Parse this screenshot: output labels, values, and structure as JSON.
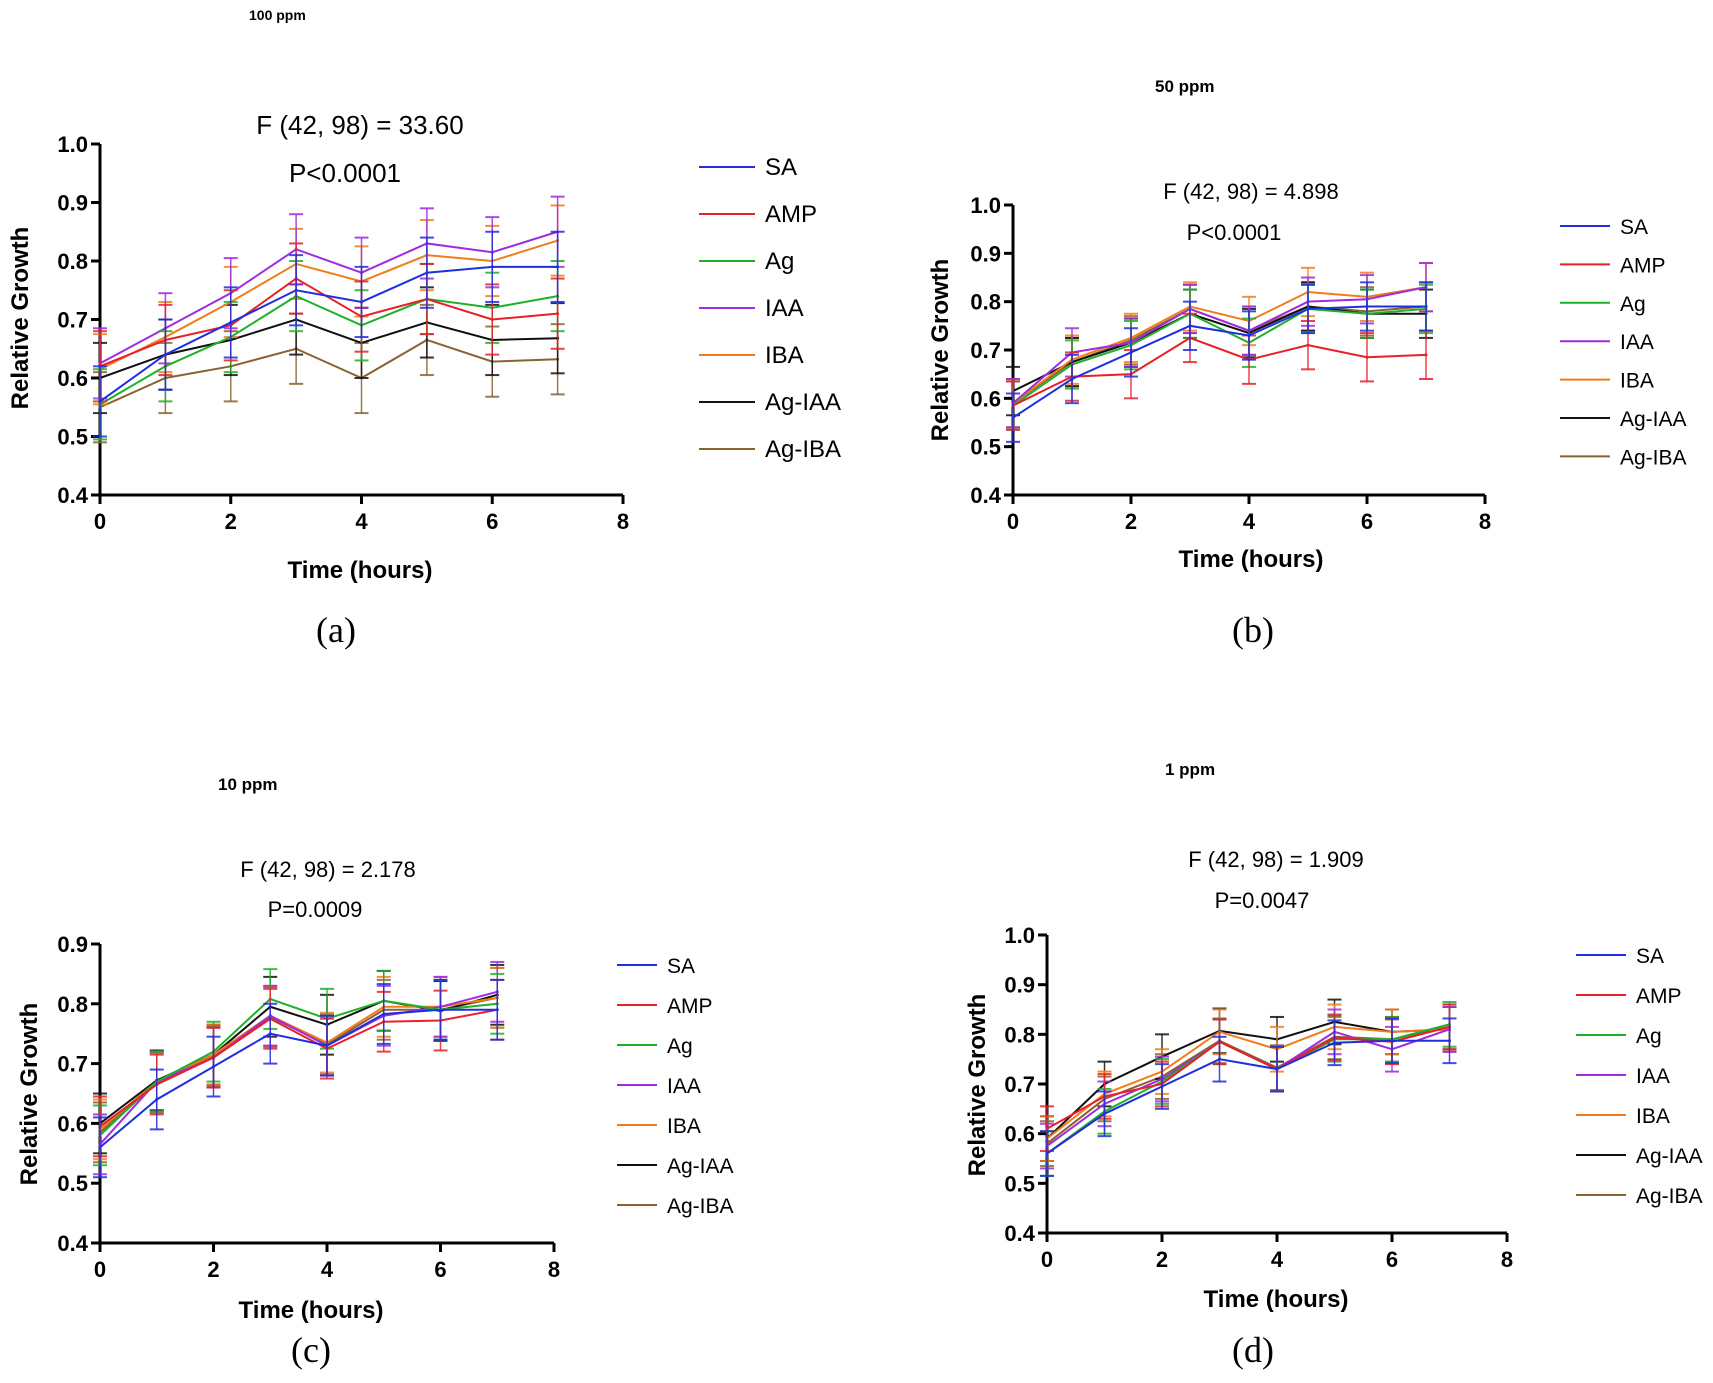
{
  "colors": {
    "SA": "#1f2fe0",
    "AMP": "#e8202a",
    "Ag": "#1fb02a",
    "IAA": "#a02be0",
    "IBA": "#f07d1a",
    "Ag-IAA": "#111111",
    "Ag-IBA": "#8a6230"
  },
  "chart_data": [
    {
      "type": "line",
      "panel": "(a)",
      "title": "100 ppm",
      "stat_f": "F (42, 98) = 33.60",
      "stat_p": "P<0.0001",
      "xlabel": "Time (hours)",
      "ylabel": "Relative Growth",
      "xlim": [
        0,
        8
      ],
      "ylim": [
        0.4,
        1.0
      ],
      "xticks": [
        "0",
        "2",
        "4",
        "6",
        "8"
      ],
      "yticks": [
        "0.4",
        "0.5",
        "0.6",
        "0.7",
        "0.8",
        "0.9",
        "1.0"
      ],
      "x": [
        0,
        1,
        2,
        3,
        4,
        5,
        6,
        7
      ],
      "error": 0.06,
      "legend": "right",
      "series": [
        {
          "name": "SA",
          "values": [
            0.56,
            0.64,
            0.695,
            0.75,
            0.73,
            0.78,
            0.79,
            0.79
          ]
        },
        {
          "name": "AMP",
          "values": [
            0.62,
            0.665,
            0.69,
            0.77,
            0.705,
            0.735,
            0.7,
            0.71
          ]
        },
        {
          "name": "Ag",
          "values": [
            0.555,
            0.62,
            0.67,
            0.74,
            0.69,
            0.735,
            0.72,
            0.74
          ]
        },
        {
          "name": "IAA",
          "values": [
            0.625,
            0.685,
            0.745,
            0.82,
            0.78,
            0.83,
            0.815,
            0.85
          ]
        },
        {
          "name": "IBA",
          "values": [
            0.615,
            0.67,
            0.73,
            0.795,
            0.765,
            0.81,
            0.8,
            0.835
          ]
        },
        {
          "name": "Ag-IAA",
          "values": [
            0.6,
            0.64,
            0.665,
            0.7,
            0.66,
            0.695,
            0.665,
            0.668
          ]
        },
        {
          "name": "Ag-IBA",
          "values": [
            0.55,
            0.6,
            0.62,
            0.65,
            0.6,
            0.665,
            0.628,
            0.632
          ]
        }
      ]
    },
    {
      "type": "line",
      "panel": "(b)",
      "title": "50 ppm",
      "stat_f": "F (42, 98) = 4.898",
      "stat_p": "P<0.0001",
      "xlabel": "Time (hours)",
      "ylabel": "Relative Growth",
      "xlim": [
        0,
        8
      ],
      "ylim": [
        0.4,
        1.0
      ],
      "xticks": [
        "0",
        "2",
        "4",
        "6",
        "8"
      ],
      "yticks": [
        "0.4",
        "0.5",
        "0.6",
        "0.7",
        "0.8",
        "0.9",
        "1.0"
      ],
      "x": [
        0,
        1,
        2,
        3,
        4,
        5,
        6,
        7
      ],
      "error": 0.05,
      "legend": "right",
      "series": [
        {
          "name": "SA",
          "values": [
            0.56,
            0.64,
            0.695,
            0.75,
            0.73,
            0.785,
            0.79,
            0.79
          ]
        },
        {
          "name": "AMP",
          "values": [
            0.585,
            0.645,
            0.65,
            0.725,
            0.68,
            0.71,
            0.685,
            0.69
          ]
        },
        {
          "name": "Ag",
          "values": [
            0.585,
            0.67,
            0.71,
            0.775,
            0.715,
            0.785,
            0.775,
            0.785
          ]
        },
        {
          "name": "IAA",
          "values": [
            0.59,
            0.695,
            0.715,
            0.785,
            0.74,
            0.8,
            0.805,
            0.83
          ]
        },
        {
          "name": "IBA",
          "values": [
            0.59,
            0.68,
            0.725,
            0.79,
            0.76,
            0.82,
            0.81,
            0.83
          ]
        },
        {
          "name": "Ag-IAA",
          "values": [
            0.615,
            0.675,
            0.715,
            0.775,
            0.735,
            0.79,
            0.775,
            0.775
          ]
        },
        {
          "name": "Ag-IBA",
          "values": [
            0.59,
            0.675,
            0.72,
            0.785,
            0.74,
            0.79,
            0.78,
            0.79
          ]
        }
      ]
    },
    {
      "type": "line",
      "panel": "(c)",
      "title": "10 ppm",
      "stat_f": "F (42, 98) = 2.178",
      "stat_p": "P=0.0009",
      "xlabel": "Time (hours)",
      "ylabel": "Relative Growth",
      "xlim": [
        0,
        8
      ],
      "ylim": [
        0.4,
        0.9
      ],
      "xticks": [
        "0",
        "2",
        "4",
        "6",
        "8"
      ],
      "yticks": [
        "0.4",
        "0.5",
        "0.6",
        "0.7",
        "0.8",
        "0.9"
      ],
      "x": [
        0,
        1,
        2,
        3,
        4,
        5,
        6,
        7
      ],
      "error": 0.05,
      "legend": "right",
      "series": [
        {
          "name": "SA",
          "values": [
            0.56,
            0.64,
            0.695,
            0.75,
            0.73,
            0.783,
            0.79,
            0.79
          ]
        },
        {
          "name": "AMP",
          "values": [
            0.595,
            0.665,
            0.71,
            0.775,
            0.725,
            0.77,
            0.772,
            0.79
          ]
        },
        {
          "name": "Ag",
          "values": [
            0.58,
            0.67,
            0.72,
            0.808,
            0.775,
            0.805,
            0.79,
            0.8
          ]
        },
        {
          "name": "IAA",
          "values": [
            0.565,
            0.67,
            0.71,
            0.78,
            0.73,
            0.78,
            0.795,
            0.82
          ]
        },
        {
          "name": "IBA",
          "values": [
            0.59,
            0.67,
            0.715,
            0.78,
            0.735,
            0.795,
            0.795,
            0.81
          ]
        },
        {
          "name": "Ag-IAA",
          "values": [
            0.6,
            0.672,
            0.715,
            0.795,
            0.765,
            0.805,
            0.788,
            0.815
          ]
        },
        {
          "name": "Ag-IBA",
          "values": [
            0.585,
            0.668,
            0.712,
            0.778,
            0.732,
            0.79,
            0.79,
            0.81
          ]
        }
      ]
    },
    {
      "type": "line",
      "panel": "(d)",
      "title": "1 ppm",
      "stat_f": "F (42, 98) = 1.909",
      "stat_p": "P=0.0047",
      "xlabel": "Time (hours)",
      "ylabel": "Relative Growth",
      "xlim": [
        0,
        8
      ],
      "ylim": [
        0.4,
        1.0
      ],
      "xticks": [
        "0",
        "2",
        "4",
        "6",
        "8"
      ],
      "yticks": [
        "0.4",
        "0.5",
        "0.6",
        "0.7",
        "0.8",
        "0.9",
        "1.0"
      ],
      "x": [
        0,
        1,
        2,
        3,
        4,
        5,
        6,
        7
      ],
      "error": 0.045,
      "legend": "right",
      "series": [
        {
          "name": "SA",
          "values": [
            0.56,
            0.64,
            0.695,
            0.75,
            0.73,
            0.783,
            0.787,
            0.787
          ]
        },
        {
          "name": "AMP",
          "values": [
            0.61,
            0.675,
            0.7,
            0.785,
            0.73,
            0.793,
            0.785,
            0.815
          ]
        },
        {
          "name": "Ag",
          "values": [
            0.56,
            0.645,
            0.705,
            0.785,
            0.73,
            0.79,
            0.79,
            0.82
          ]
        },
        {
          "name": "IAA",
          "values": [
            0.575,
            0.66,
            0.71,
            0.785,
            0.73,
            0.805,
            0.77,
            0.81
          ]
        },
        {
          "name": "IBA",
          "values": [
            0.59,
            0.68,
            0.725,
            0.805,
            0.77,
            0.815,
            0.805,
            0.81
          ]
        },
        {
          "name": "Ag-IAA",
          "values": [
            0.59,
            0.7,
            0.755,
            0.807,
            0.79,
            0.825,
            0.805,
            0.81
          ]
        },
        {
          "name": "Ag-IBA",
          "values": [
            0.58,
            0.67,
            0.715,
            0.787,
            0.733,
            0.795,
            0.79,
            0.815
          ]
        }
      ]
    }
  ]
}
